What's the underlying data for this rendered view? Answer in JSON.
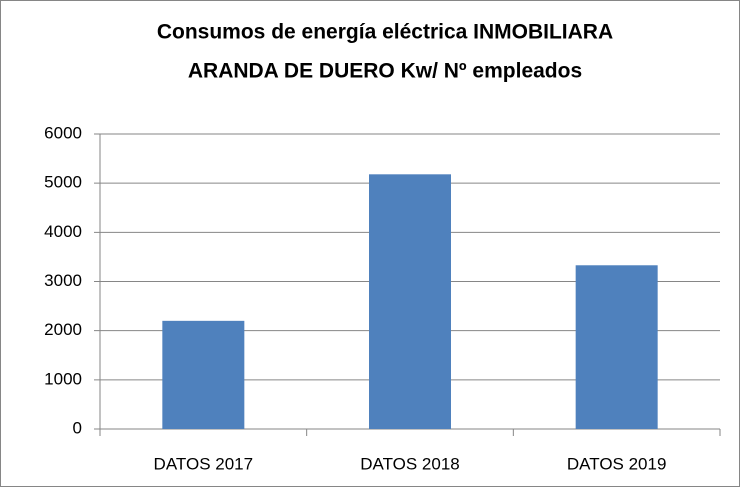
{
  "chart_data": {
    "type": "bar",
    "title": [
      "Consumos de energía eléctrica INMOBILIARA",
      "ARANDA DE DUERO Kw/ Nº empleados"
    ],
    "categories": [
      "DATOS 2017",
      "DATOS 2018",
      "DATOS 2019"
    ],
    "values": [
      2200,
      5180,
      3330
    ],
    "color": "#4f81bd",
    "ylim": [
      0,
      6000
    ],
    "yticks": [
      0,
      1000,
      2000,
      3000,
      4000,
      5000,
      6000
    ],
    "grid": true
  }
}
